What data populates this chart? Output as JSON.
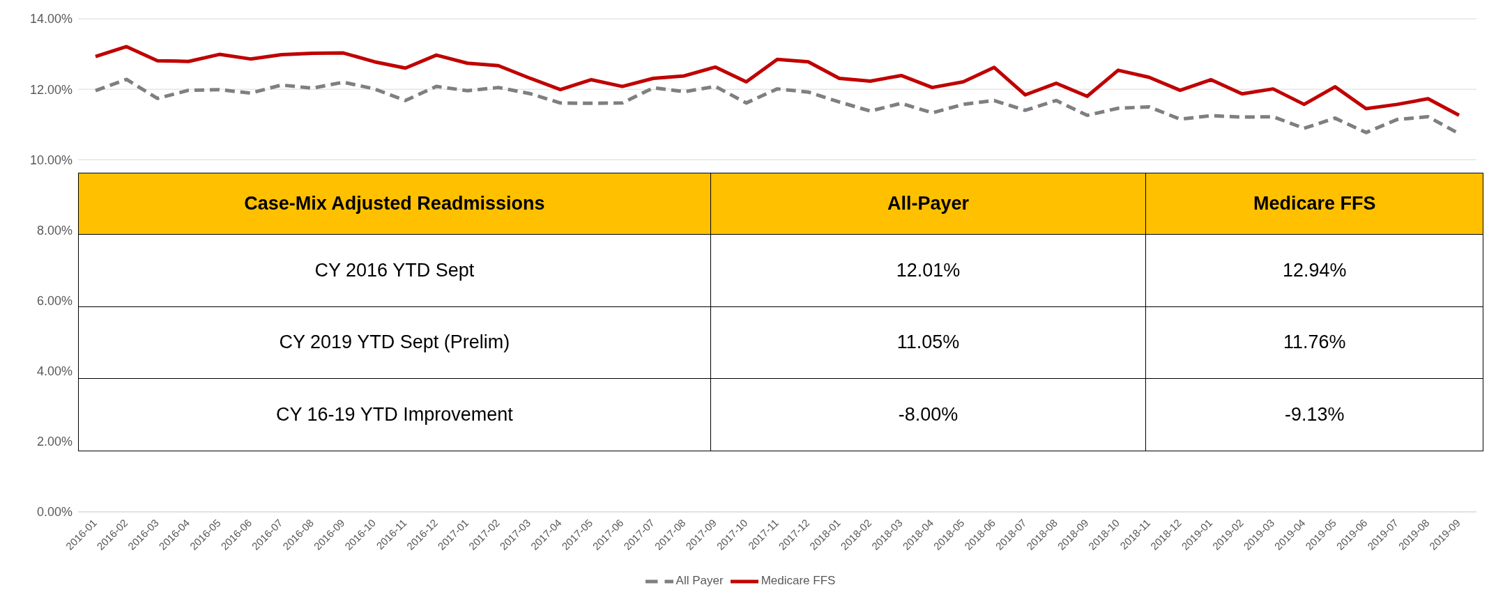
{
  "chart_data": {
    "type": "line",
    "categories": [
      "2016-01",
      "2016-02",
      "2016-03",
      "2016-04",
      "2016-05",
      "2016-06",
      "2016-07",
      "2016-08",
      "2016-09",
      "2016-10",
      "2016-11",
      "2016-12",
      "2017-01",
      "2017-02",
      "2017-03",
      "2017-04",
      "2017-05",
      "2017-06",
      "2017-07",
      "2017-08",
      "2017-09",
      "2017-10",
      "2017-11",
      "2017-12",
      "2018-01",
      "2018-02",
      "2018-03",
      "2018-04",
      "2018-05",
      "2018-06",
      "2018-07",
      "2018-08",
      "2018-09",
      "2018-10",
      "2018-11",
      "2018-12",
      "2019-01",
      "2019-02",
      "2019-03",
      "2019-04",
      "2019-05",
      "2019-06",
      "2019-07",
      "2019-08",
      "2019-09"
    ],
    "series": [
      {
        "name": "All Payer",
        "color": "#7f7f7f",
        "line_style": "dashed",
        "values": [
          11.96,
          12.28,
          11.74,
          11.97,
          11.99,
          11.89,
          12.12,
          12.03,
          12.2,
          12.01,
          11.68,
          12.08,
          11.96,
          12.05,
          11.88,
          11.61,
          11.6,
          11.61,
          12.04,
          11.93,
          12.08,
          11.61,
          12.01,
          11.92,
          11.64,
          11.38,
          11.6,
          11.33,
          11.57,
          11.68,
          11.4,
          11.68,
          11.26,
          11.46,
          11.5,
          11.15,
          11.25,
          11.21,
          11.22,
          10.89,
          11.18,
          10.77,
          11.14,
          11.22,
          10.74
        ]
      },
      {
        "name": "Medicare FFS",
        "color": "#c00000",
        "line_style": "solid",
        "values": [
          12.93,
          13.21,
          12.81,
          12.79,
          12.99,
          12.86,
          12.98,
          13.02,
          13.03,
          12.78,
          12.6,
          12.97,
          12.74,
          12.67,
          12.32,
          11.99,
          12.27,
          12.08,
          12.31,
          12.38,
          12.63,
          12.21,
          12.85,
          12.78,
          12.31,
          12.23,
          12.39,
          12.05,
          12.21,
          12.62,
          11.84,
          12.17,
          11.8,
          12.54,
          12.34,
          11.97,
          12.27,
          11.87,
          12.01,
          11.57,
          12.07,
          11.45,
          11.57,
          11.73,
          11.26
        ]
      }
    ],
    "ylim": [
      0,
      14
    ],
    "yticks": [
      {
        "value": 0,
        "label": "0.00%"
      },
      {
        "value": 2,
        "label": "2.00%"
      },
      {
        "value": 4,
        "label": "4.00%"
      },
      {
        "value": 6,
        "label": "6.00%"
      },
      {
        "value": 8,
        "label": "8.00%"
      },
      {
        "value": 10,
        "label": "10.00%"
      },
      {
        "value": 12,
        "label": "12.00%"
      },
      {
        "value": 14,
        "label": "14.00%"
      }
    ],
    "grid": "y",
    "legend": "bottom",
    "marker": "none",
    "annotations": [
      "Case-Mix Adjusted Readmissions",
      "All-Payer",
      "Medicare FFS",
      "CY 2016 YTD Sept",
      "12.01%",
      "12.94%",
      "CY 2019 YTD Sept (Prelim)",
      "11.05%",
      "11.76%",
      "CY 16-19 YTD Improvement",
      "-8.00%",
      "-9.13%"
    ]
  }
}
